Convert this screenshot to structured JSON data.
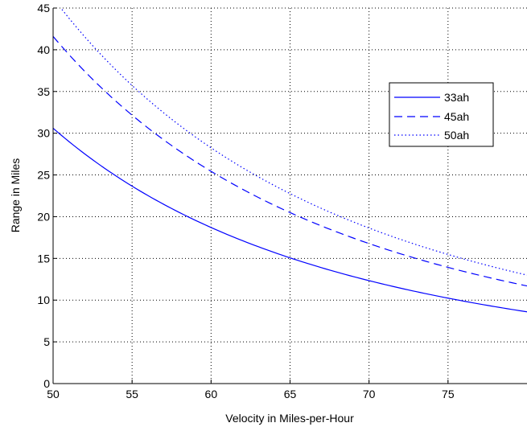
{
  "chart_data": {
    "type": "line",
    "title": "",
    "xlabel": "Velocity in Miles-per-Hour",
    "ylabel": "Range in Miles",
    "xlim": [
      50,
      80
    ],
    "ylim": [
      0,
      45
    ],
    "x_ticks": [
      50,
      55,
      60,
      65,
      70,
      75
    ],
    "y_ticks": [
      0,
      5,
      10,
      15,
      20,
      25,
      30,
      35,
      40,
      45
    ],
    "grid": true,
    "legend_position": "top-right",
    "series": [
      {
        "name": "33ah",
        "line_style": "solid",
        "color": "#0000ff",
        "x": [
          50,
          52.5,
          55,
          57.5,
          60,
          62.5,
          65,
          67.5,
          70,
          72.5,
          75,
          77.5,
          80
        ],
        "values": [
          30.6,
          26.0,
          22.6,
          19.8,
          17.6,
          15.8,
          14.3,
          13.0,
          11.9,
          10.9,
          10.0,
          9.3,
          8.6
        ]
      },
      {
        "name": "45ah",
        "line_style": "dashed",
        "color": "#0000ff",
        "x": [
          50,
          52.5,
          55,
          57.5,
          60,
          62.5,
          65,
          67.5,
          70,
          72.5,
          75,
          77.5,
          80
        ],
        "values": [
          41.6,
          35.4,
          30.7,
          27.0,
          24.0,
          21.5,
          19.4,
          17.6,
          16.1,
          14.8,
          13.6,
          12.6,
          11.7
        ]
      },
      {
        "name": "50ah",
        "line_style": "dotted",
        "color": "#0000ff",
        "x": [
          50,
          52.5,
          55,
          57.5,
          60,
          62.5,
          65,
          67.5,
          70,
          72.5,
          75,
          77.5,
          80
        ],
        "values": [
          46.2,
          39.3,
          34.1,
          30.0,
          26.6,
          23.9,
          21.6,
          19.6,
          17.9,
          16.4,
          15.1,
          14.0,
          13.0
        ]
      }
    ]
  }
}
